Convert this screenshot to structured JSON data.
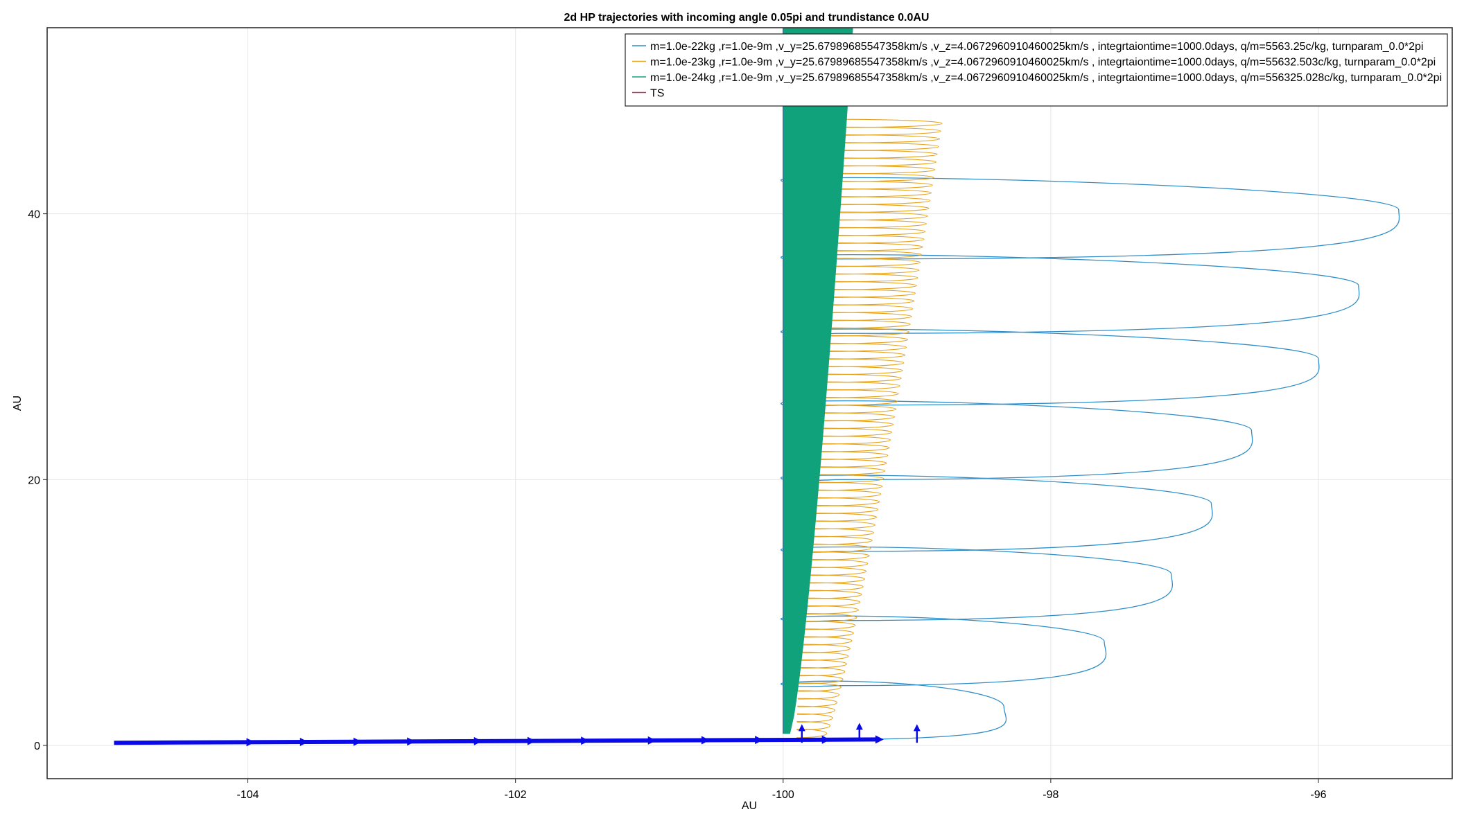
{
  "chart_data": {
    "type": "line",
    "title": "2d HP trajectories with incoming angle 0.05pi and trundistance 0.0AU",
    "xlabel": "AU",
    "ylabel": "AU",
    "xlim": [
      -105.5,
      -95
    ],
    "ylim": [
      -2.5,
      54
    ],
    "xticks": [
      -104,
      -102,
      -100,
      -98,
      -96
    ],
    "yticks": [
      0,
      20,
      40
    ],
    "grid": true,
    "legend_position": "top-right",
    "series": [
      {
        "name": "m=1.0e-22kg ,r=1.0e-9m ,v_y=25.67989685547358km/s ,v_z=4.0672960910460025km/s , integrtaiontime=1000.0days, q/m=5563.25c/kg, turnparam_0.0*2pi",
        "color": "#2f8ec8",
        "kind": "gyration",
        "start_x": -100,
        "start_y": 0.4,
        "loops": [
          {
            "center_y": 2.9,
            "max_x": -98.35,
            "half_height": 2.3
          },
          {
            "center_y": 7.8,
            "max_x": -97.6,
            "half_height": 2.3
          },
          {
            "center_y": 12.9,
            "max_x": -97.1,
            "half_height": 2.4
          },
          {
            "center_y": 18.2,
            "max_x": -96.8,
            "half_height": 2.5
          },
          {
            "center_y": 23.7,
            "max_x": -96.5,
            "half_height": 2.6
          },
          {
            "center_y": 29.1,
            "max_x": -96.0,
            "half_height": 2.6
          },
          {
            "center_y": 34.6,
            "max_x": -95.7,
            "half_height": 2.7
          },
          {
            "center_y": 40.3,
            "max_x": -95.4,
            "half_height": 2.8
          }
        ]
      },
      {
        "name": "m=1.0e-23kg ,r=1.0e-9m ,v_y=25.67989685547358km/s ,v_z=4.0672960910460025km/s , integrtaiontime=1000.0days, q/m=55632.503c/kg, turnparam_0.0*2pi",
        "color": "#e6a21a",
        "kind": "gyration_band",
        "y_range": [
          0.9,
          46.8
        ],
        "max_x_range": [
          -99.6,
          -98.5
        ],
        "loop_count": 80
      },
      {
        "name": "m=1.0e-24kg ,r=1.0e-9m ,v_y=25.67989685547358km/s ,v_z=4.0672960910460025km/s , integrtaiontime=1000.0days, q/m=556325.028c/kg, turnparam_0.0*2pi",
        "color": "#10a27a",
        "kind": "filled_band",
        "y_range": [
          0.9,
          54
        ],
        "max_x_range": [
          -99.95,
          -99.48
        ]
      },
      {
        "name": "TS",
        "color": "#c1345f",
        "kind": "line",
        "x": [
          -105,
          -104.5
        ],
        "y": [
          0.1,
          0.15
        ]
      }
    ],
    "field_arrows": {
      "color": "#0a0ae8",
      "horizontal": {
        "from": [
          -105,
          0.2
        ],
        "to": [
          -99.28,
          0.45
        ],
        "heads_x": [
          -104.0,
          -103.6,
          -103.2,
          -102.8,
          -102.3,
          -101.9,
          -101.5,
          -101.0,
          -100.6,
          -100.2,
          -99.7,
          -99.3
        ]
      },
      "vertical": [
        {
          "x": -99.86,
          "y0": 0.2,
          "y1": 1.6
        },
        {
          "x": -99.43,
          "y0": 0.3,
          "y1": 1.7
        },
        {
          "x": -99.0,
          "y0": 0.2,
          "y1": 1.6
        }
      ]
    }
  }
}
